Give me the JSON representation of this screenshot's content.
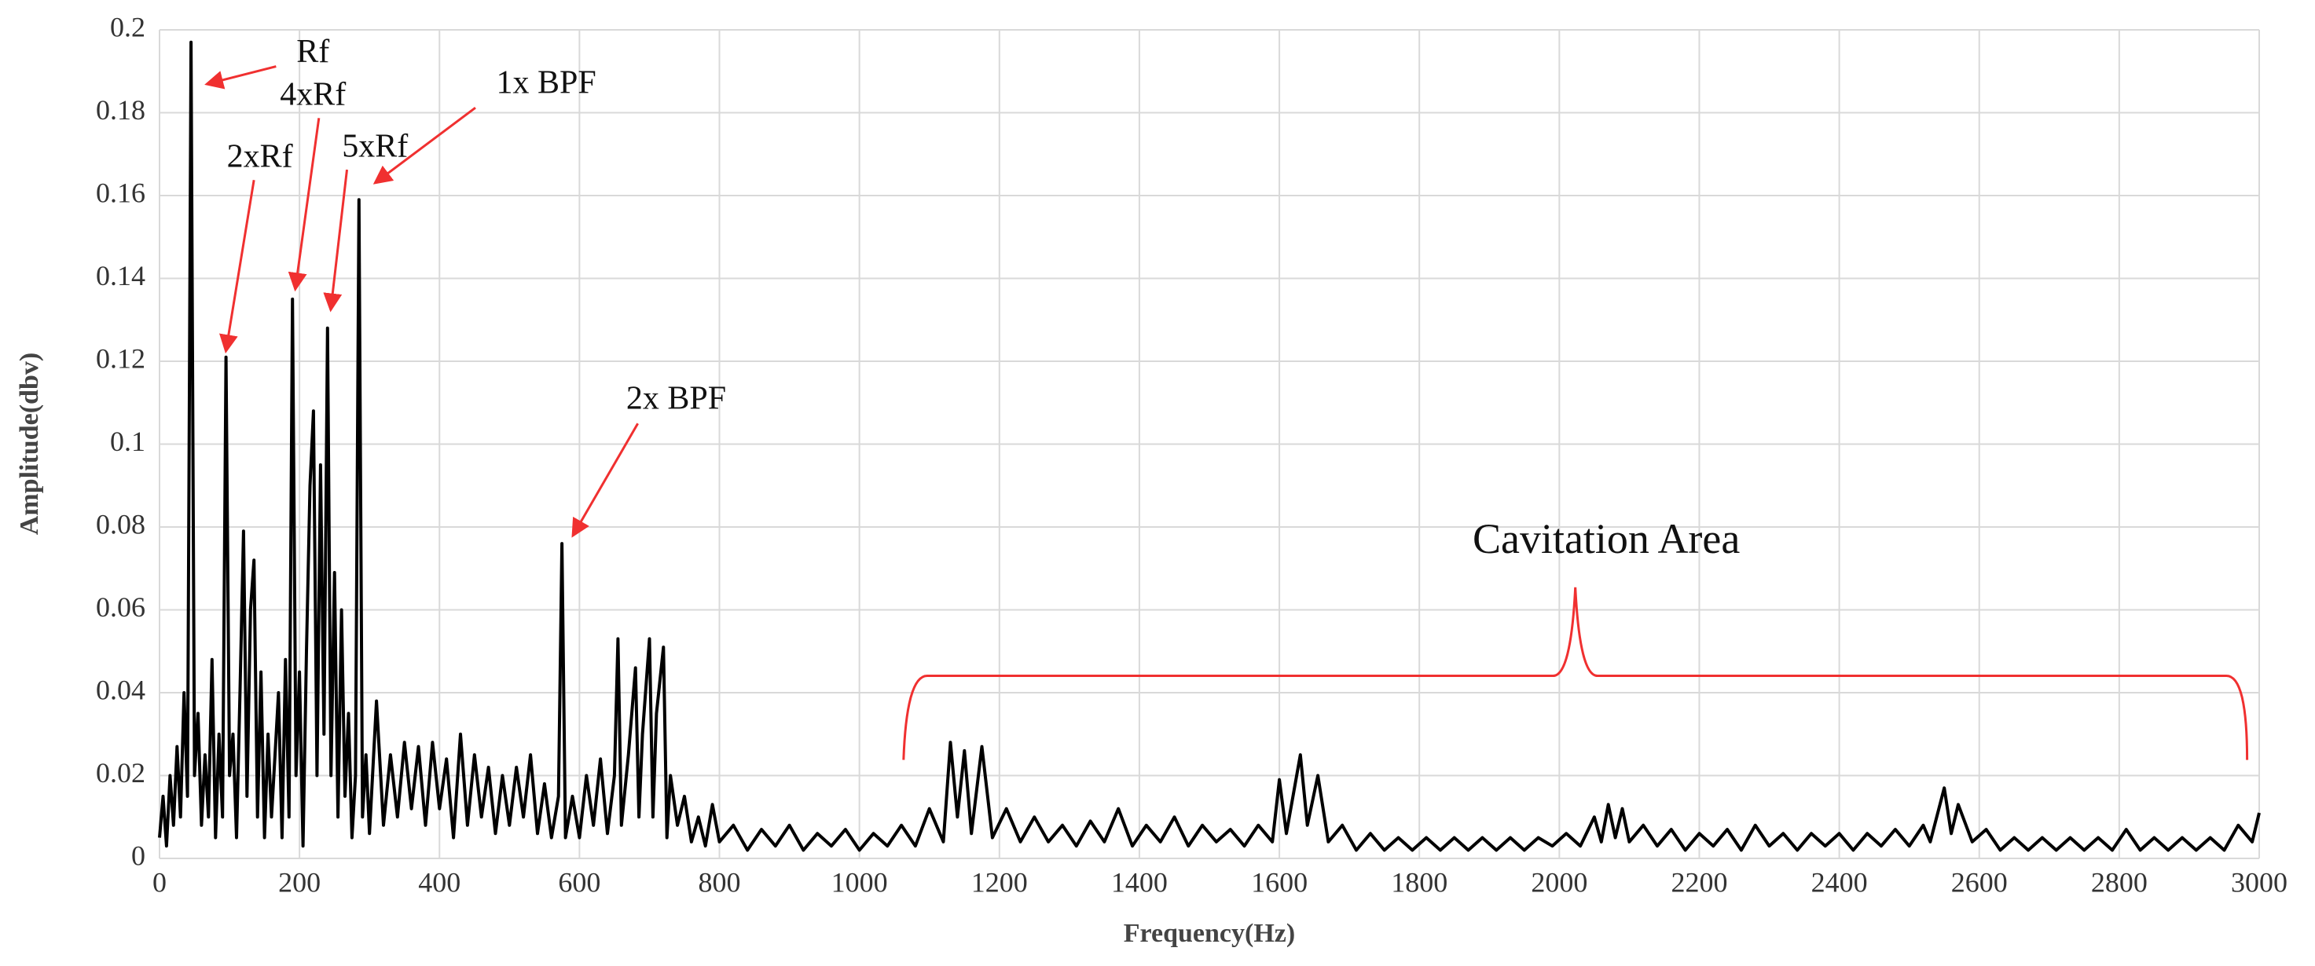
{
  "chart_data": {
    "type": "line",
    "xlabel": "Frequency(Hz)",
    "ylabel": "Amplitude(dbv)",
    "color": "#000000",
    "grid": true,
    "xlim": [
      0,
      3000
    ],
    "xticks": [
      0,
      200,
      400,
      600,
      800,
      1000,
      1200,
      1400,
      1600,
      1800,
      2000,
      2200,
      2400,
      2600,
      2800,
      3000
    ],
    "ylim": [
      0,
      0.2
    ],
    "yticks": [
      0,
      0.02,
      0.04,
      0.06,
      0.08,
      0.1,
      0.12,
      0.14,
      0.16,
      0.18,
      0.2
    ],
    "annotations": [
      "Rf",
      "4xRf",
      "2xRf",
      "5xRf",
      "1x BPF",
      "2x BPF",
      "Cavitation Area"
    ],
    "x": [
      0,
      5,
      10,
      15,
      20,
      25,
      30,
      35,
      40,
      45,
      50,
      55,
      60,
      65,
      70,
      75,
      80,
      85,
      90,
      95,
      100,
      105,
      110,
      115,
      120,
      125,
      130,
      135,
      140,
      145,
      150,
      155,
      160,
      165,
      170,
      175,
      180,
      185,
      190,
      195,
      200,
      205,
      210,
      215,
      220,
      225,
      230,
      235,
      240,
      245,
      250,
      255,
      260,
      265,
      270,
      275,
      280,
      285,
      290,
      295,
      300,
      310,
      320,
      330,
      340,
      350,
      360,
      370,
      380,
      390,
      400,
      410,
      420,
      430,
      440,
      450,
      460,
      470,
      480,
      490,
      500,
      510,
      520,
      530,
      540,
      550,
      560,
      570,
      575,
      580,
      590,
      600,
      610,
      620,
      630,
      640,
      650,
      655,
      660,
      670,
      680,
      685,
      690,
      700,
      705,
      710,
      720,
      725,
      730,
      740,
      750,
      760,
      770,
      780,
      790,
      800,
      820,
      840,
      860,
      880,
      900,
      920,
      940,
      960,
      980,
      1000,
      1020,
      1040,
      1060,
      1080,
      1100,
      1120,
      1130,
      1140,
      1150,
      1160,
      1175,
      1190,
      1210,
      1230,
      1250,
      1270,
      1290,
      1310,
      1330,
      1350,
      1370,
      1390,
      1410,
      1430,
      1450,
      1470,
      1490,
      1510,
      1530,
      1550,
      1570,
      1590,
      1600,
      1610,
      1630,
      1640,
      1655,
      1670,
      1690,
      1710,
      1730,
      1750,
      1770,
      1790,
      1810,
      1830,
      1850,
      1870,
      1890,
      1910,
      1930,
      1950,
      1970,
      1990,
      2010,
      2030,
      2050,
      2060,
      2070,
      2080,
      2090,
      2100,
      2120,
      2140,
      2160,
      2180,
      2200,
      2220,
      2240,
      2260,
      2280,
      2300,
      2320,
      2340,
      2360,
      2380,
      2400,
      2420,
      2440,
      2460,
      2480,
      2500,
      2520,
      2530,
      2550,
      2560,
      2570,
      2590,
      2610,
      2630,
      2650,
      2670,
      2690,
      2710,
      2730,
      2750,
      2770,
      2790,
      2810,
      2830,
      2850,
      2870,
      2890,
      2910,
      2930,
      2950,
      2970,
      2990,
      3000
    ],
    "values": [
      0.005,
      0.015,
      0.003,
      0.02,
      0.008,
      0.027,
      0.01,
      0.04,
      0.015,
      0.197,
      0.02,
      0.035,
      0.008,
      0.025,
      0.01,
      0.048,
      0.005,
      0.03,
      0.01,
      0.121,
      0.02,
      0.03,
      0.005,
      0.04,
      0.079,
      0.015,
      0.06,
      0.072,
      0.01,
      0.045,
      0.005,
      0.03,
      0.01,
      0.025,
      0.04,
      0.005,
      0.048,
      0.01,
      0.135,
      0.02,
      0.045,
      0.003,
      0.05,
      0.09,
      0.108,
      0.02,
      0.095,
      0.03,
      0.128,
      0.02,
      0.069,
      0.01,
      0.06,
      0.015,
      0.035,
      0.005,
      0.02,
      0.159,
      0.01,
      0.025,
      0.006,
      0.038,
      0.008,
      0.025,
      0.01,
      0.028,
      0.012,
      0.027,
      0.008,
      0.028,
      0.012,
      0.024,
      0.005,
      0.03,
      0.008,
      0.025,
      0.01,
      0.022,
      0.006,
      0.02,
      0.008,
      0.022,
      0.01,
      0.025,
      0.006,
      0.018,
      0.005,
      0.015,
      0.076,
      0.005,
      0.015,
      0.005,
      0.02,
      0.008,
      0.024,
      0.006,
      0.02,
      0.053,
      0.008,
      0.025,
      0.046,
      0.01,
      0.03,
      0.053,
      0.01,
      0.035,
      0.051,
      0.005,
      0.02,
      0.008,
      0.015,
      0.004,
      0.01,
      0.003,
      0.013,
      0.004,
      0.008,
      0.002,
      0.007,
      0.003,
      0.008,
      0.002,
      0.006,
      0.003,
      0.007,
      0.002,
      0.006,
      0.003,
      0.008,
      0.003,
      0.012,
      0.004,
      0.028,
      0.01,
      0.026,
      0.006,
      0.027,
      0.005,
      0.012,
      0.004,
      0.01,
      0.004,
      0.008,
      0.003,
      0.009,
      0.004,
      0.012,
      0.003,
      0.008,
      0.004,
      0.01,
      0.003,
      0.008,
      0.004,
      0.007,
      0.003,
      0.008,
      0.004,
      0.019,
      0.006,
      0.025,
      0.008,
      0.02,
      0.004,
      0.008,
      0.002,
      0.006,
      0.002,
      0.005,
      0.002,
      0.005,
      0.002,
      0.005,
      0.002,
      0.005,
      0.002,
      0.005,
      0.002,
      0.005,
      0.003,
      0.006,
      0.003,
      0.01,
      0.004,
      0.013,
      0.005,
      0.012,
      0.004,
      0.008,
      0.003,
      0.007,
      0.002,
      0.006,
      0.003,
      0.007,
      0.002,
      0.008,
      0.003,
      0.006,
      0.002,
      0.006,
      0.003,
      0.006,
      0.002,
      0.006,
      0.003,
      0.007,
      0.003,
      0.008,
      0.004,
      0.017,
      0.006,
      0.013,
      0.004,
      0.007,
      0.002,
      0.005,
      0.002,
      0.005,
      0.002,
      0.005,
      0.002,
      0.005,
      0.002,
      0.007,
      0.002,
      0.005,
      0.002,
      0.005,
      0.002,
      0.005,
      0.002,
      0.008,
      0.004,
      0.011
    ]
  }
}
